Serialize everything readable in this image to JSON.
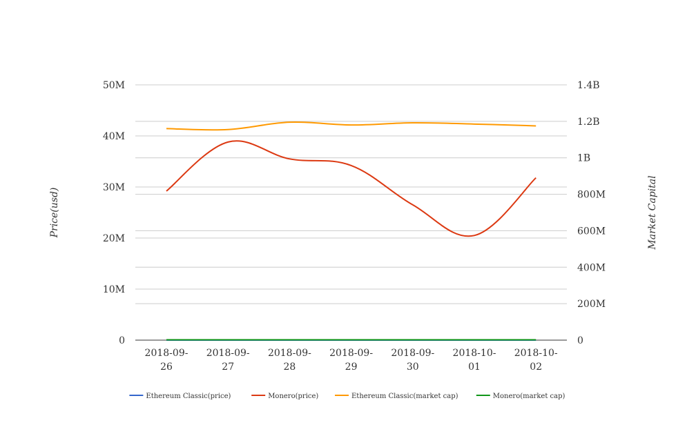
{
  "chart_data": {
    "type": "line",
    "categories": [
      "2018-09-26",
      "2018-09-27",
      "2018-09-28",
      "2018-09-29",
      "2018-09-30",
      "2018-10-01",
      "2018-10-02"
    ],
    "category_lines": [
      [
        "2018-09-",
        "26"
      ],
      [
        "2018-09-",
        "27"
      ],
      [
        "2018-09-",
        "28"
      ],
      [
        "2018-09-",
        "29"
      ],
      [
        "2018-09-",
        "30"
      ],
      [
        "2018-10-",
        "01"
      ],
      [
        "2018-10-",
        "02"
      ]
    ],
    "ylabel": "Price(usd)",
    "y2label": "Market Capital",
    "ylim": [
      0,
      50000000
    ],
    "y2lim": [
      0,
      1400000000
    ],
    "yticks": [
      {
        "value": 0,
        "label": "0"
      },
      {
        "value": 10000000,
        "label": "10M"
      },
      {
        "value": 20000000,
        "label": "20M"
      },
      {
        "value": 30000000,
        "label": "30M"
      },
      {
        "value": 40000000,
        "label": "40M"
      },
      {
        "value": 50000000,
        "label": "50M"
      }
    ],
    "y2ticks": [
      {
        "value": 0,
        "label": "0"
      },
      {
        "value": 200000000,
        "label": "200M"
      },
      {
        "value": 400000000,
        "label": "400M"
      },
      {
        "value": 600000000,
        "label": "600M"
      },
      {
        "value": 800000000,
        "label": "800M"
      },
      {
        "value": 1000000000,
        "label": "1B"
      },
      {
        "value": 1200000000,
        "label": "1.2B"
      },
      {
        "value": 1400000000,
        "label": "1.4B"
      }
    ],
    "grid": true,
    "legend_position": "bottom",
    "series": [
      {
        "name": "Ethereum Classic(price)",
        "axis": "left",
        "color": "#3366cc",
        "values": [
          10.5,
          10.4,
          10.6,
          10.5,
          10.4,
          10.3,
          10.2
        ]
      },
      {
        "name": "Monero(price)",
        "axis": "left",
        "color": "#dc3912",
        "values": [
          29200000,
          38800000,
          35500000,
          34200000,
          26500000,
          20500000,
          31800000
        ]
      },
      {
        "name": "Ethereum Classic(market cap)",
        "axis": "right",
        "color": "#ff9900",
        "values": [
          1160000000,
          1155000000,
          1195000000,
          1180000000,
          1192000000,
          1185000000,
          1175000000
        ]
      },
      {
        "name": "Monero(market cap)",
        "axis": "right",
        "color": "#109618",
        "values": [
          1750000,
          1720000,
          1760000,
          1740000,
          1700000,
          1690000,
          1710000
        ]
      }
    ]
  }
}
